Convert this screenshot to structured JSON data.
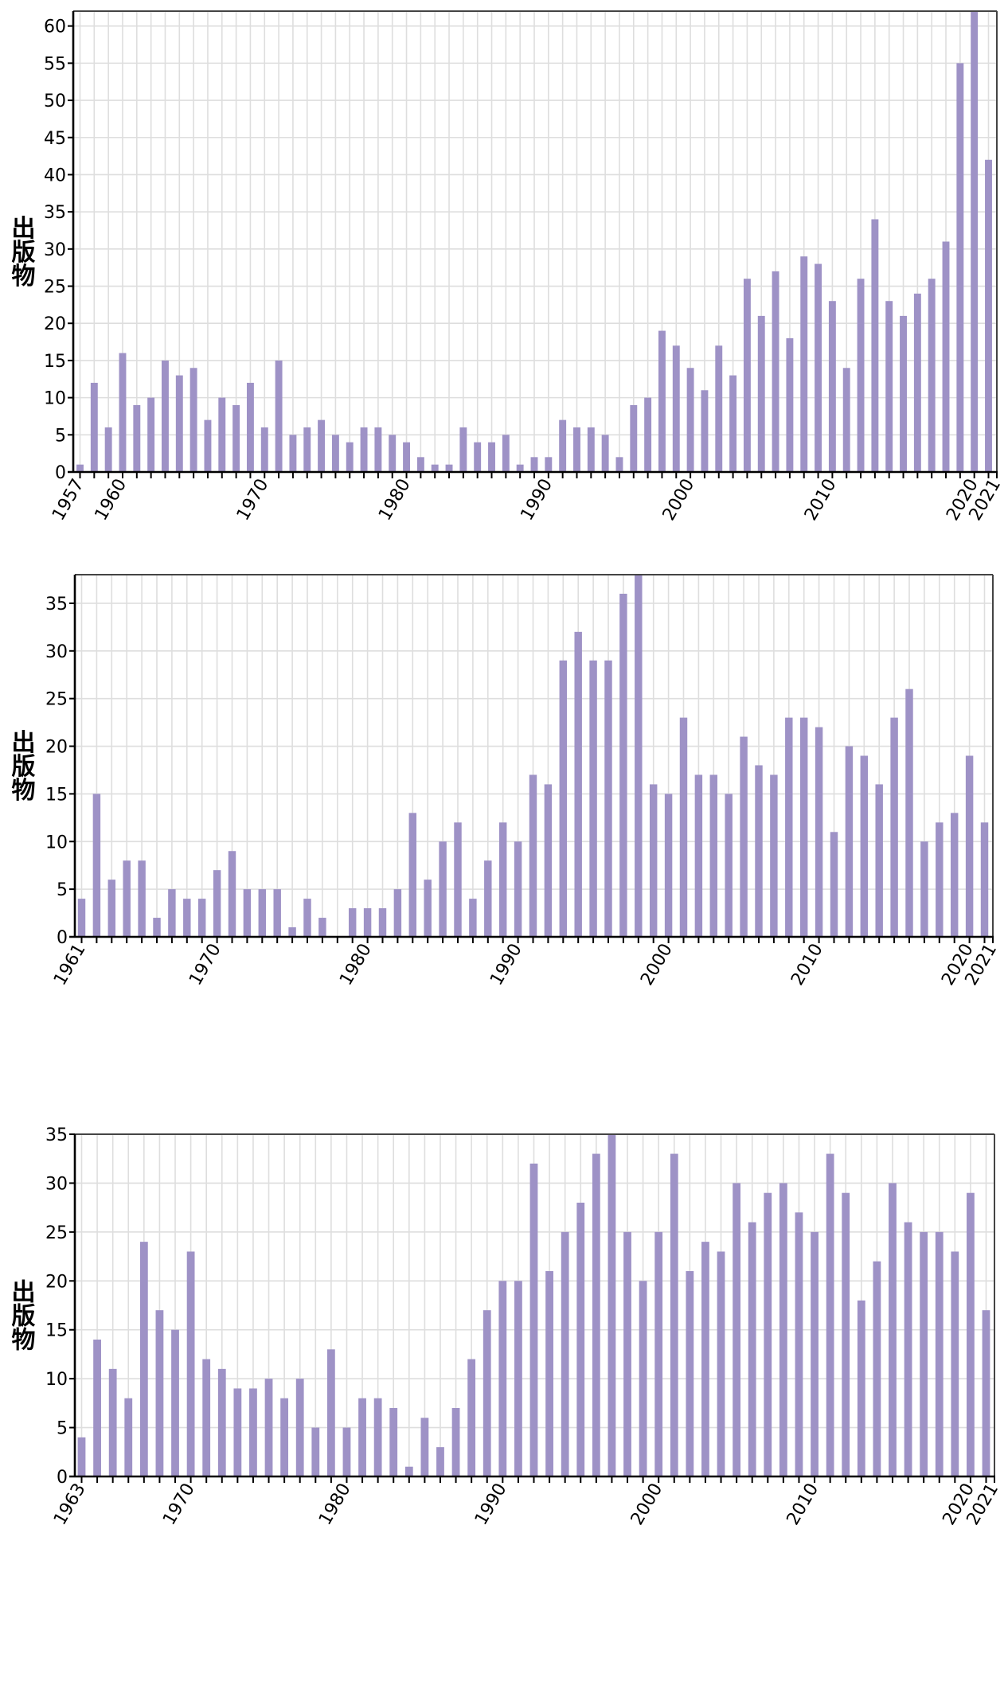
{
  "colors": {
    "bar": "#9e92c6",
    "grid": "#dedede",
    "axis": "#000000",
    "frame": "#444444"
  },
  "chart_data": [
    {
      "type": "bar",
      "title": "",
      "xlabel": "",
      "ylabel": "出版物",
      "ylim": [
        0,
        62
      ],
      "yticks": [
        0,
        5,
        10,
        15,
        20,
        25,
        30,
        35,
        40,
        45,
        50,
        55,
        60
      ],
      "xtick_labels": [
        "1957",
        "1960",
        "1970",
        "1980",
        "1990",
        "2000",
        "2010",
        "2020",
        "2021"
      ],
      "grid": true,
      "legend": "none",
      "x": [
        1957,
        1958,
        1959,
        1960,
        1961,
        1962,
        1963,
        1964,
        1965,
        1966,
        1967,
        1968,
        1969,
        1970,
        1971,
        1972,
        1973,
        1974,
        1975,
        1976,
        1977,
        1978,
        1979,
        1980,
        1981,
        1982,
        1983,
        1984,
        1985,
        1986,
        1987,
        1988,
        1989,
        1990,
        1991,
        1992,
        1993,
        1994,
        1995,
        1996,
        1997,
        1998,
        1999,
        2000,
        2001,
        2002,
        2003,
        2004,
        2005,
        2006,
        2007,
        2008,
        2009,
        2010,
        2011,
        2012,
        2013,
        2014,
        2015,
        2016,
        2017,
        2018,
        2019,
        2020,
        2021
      ],
      "values": [
        1,
        12,
        6,
        16,
        9,
        10,
        15,
        13,
        14,
        7,
        10,
        9,
        12,
        6,
        15,
        5,
        6,
        7,
        5,
        4,
        6,
        6,
        5,
        4,
        2,
        1,
        1,
        6,
        4,
        4,
        5,
        1,
        2,
        2,
        7,
        6,
        6,
        5,
        2,
        9,
        10,
        19,
        17,
        14,
        11,
        17,
        13,
        26,
        21,
        27,
        18,
        29,
        28,
        23,
        14,
        26,
        34,
        23,
        21,
        24,
        26,
        31,
        55,
        62,
        42
      ]
    },
    {
      "type": "bar",
      "title": "",
      "xlabel": "",
      "ylabel": "出版物",
      "ylim": [
        0,
        38
      ],
      "yticks": [
        0,
        5,
        10,
        15,
        20,
        25,
        30,
        35
      ],
      "xtick_labels": [
        "1961",
        "1970",
        "1980",
        "1990",
        "2000",
        "2010",
        "2020",
        "2021"
      ],
      "grid": true,
      "legend": "none",
      "x": [
        1961,
        1962,
        1963,
        1964,
        1965,
        1966,
        1967,
        1968,
        1969,
        1970,
        1971,
        1972,
        1973,
        1974,
        1975,
        1976,
        1977,
        1978,
        1979,
        1980,
        1981,
        1982,
        1983,
        1984,
        1985,
        1986,
        1987,
        1988,
        1989,
        1990,
        1991,
        1992,
        1993,
        1994,
        1995,
        1996,
        1997,
        1998,
        1999,
        2000,
        2001,
        2002,
        2003,
        2004,
        2005,
        2006,
        2007,
        2008,
        2009,
        2010,
        2011,
        2012,
        2013,
        2014,
        2015,
        2016,
        2017,
        2018,
        2019,
        2020,
        2021
      ],
      "values": [
        4,
        15,
        6,
        8,
        8,
        2,
        5,
        4,
        4,
        7,
        9,
        5,
        5,
        5,
        1,
        4,
        2,
        0,
        3,
        3,
        3,
        5,
        13,
        6,
        10,
        12,
        4,
        8,
        12,
        10,
        17,
        16,
        29,
        32,
        29,
        29,
        36,
        38,
        16,
        15,
        23,
        17,
        17,
        15,
        21,
        18,
        17,
        23,
        23,
        22,
        11,
        20,
        19,
        16,
        23,
        26,
        10,
        12,
        13,
        19,
        12
      ]
    },
    {
      "type": "bar",
      "title": "",
      "xlabel": "",
      "ylabel": "出版物",
      "ylim": [
        0,
        35
      ],
      "yticks": [
        0,
        5,
        10,
        15,
        20,
        25,
        30,
        35
      ],
      "xtick_labels": [
        "1963",
        "1970",
        "1980",
        "1990",
        "2000",
        "2010",
        "2020",
        "2021"
      ],
      "grid": true,
      "legend": "none",
      "x": [
        1963,
        1964,
        1965,
        1966,
        1967,
        1968,
        1969,
        1970,
        1971,
        1972,
        1973,
        1974,
        1975,
        1976,
        1977,
        1978,
        1979,
        1980,
        1981,
        1982,
        1983,
        1984,
        1985,
        1986,
        1987,
        1988,
        1989,
        1990,
        1991,
        1992,
        1993,
        1994,
        1995,
        1996,
        1997,
        1998,
        1999,
        2000,
        2001,
        2002,
        2003,
        2004,
        2005,
        2006,
        2007,
        2008,
        2009,
        2010,
        2011,
        2012,
        2013,
        2014,
        2015,
        2016,
        2017,
        2018,
        2019,
        2020,
        2021
      ],
      "values": [
        4,
        14,
        11,
        8,
        24,
        17,
        15,
        23,
        12,
        11,
        9,
        9,
        10,
        8,
        10,
        5,
        13,
        5,
        8,
        8,
        7,
        1,
        6,
        3,
        7,
        12,
        17,
        20,
        20,
        32,
        21,
        25,
        28,
        33,
        35,
        25,
        20,
        25,
        33,
        21,
        24,
        23,
        30,
        26,
        29,
        30,
        27,
        25,
        33,
        29,
        18,
        22,
        30,
        26,
        25,
        25,
        23,
        29,
        17
      ]
    }
  ]
}
